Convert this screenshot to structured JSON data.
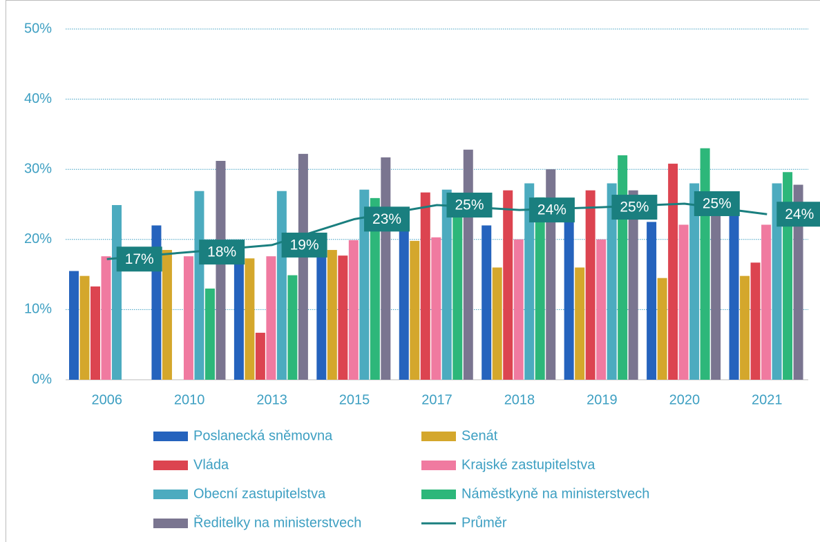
{
  "chart_data": {
    "type": "bar",
    "categories": [
      "2006",
      "2010",
      "2013",
      "2015",
      "2017",
      "2018",
      "2019",
      "2020",
      "2021"
    ],
    "series": [
      {
        "name": "Poslanecká sněmovna",
        "color": "#2563bd",
        "values": [
          15.5,
          22,
          19.5,
          19.5,
          22,
          22,
          23,
          22.5,
          25
        ]
      },
      {
        "name": "Senát",
        "color": "#d4a72c",
        "values": [
          14.8,
          18.5,
          17.3,
          18.5,
          19.8,
          16,
          16,
          14.5,
          14.8
        ]
      },
      {
        "name": "Vláda",
        "color": "#dc4450",
        "values": [
          13.3,
          null,
          6.7,
          17.7,
          26.7,
          27,
          27,
          30.8,
          16.7
        ]
      },
      {
        "name": "Krajské zastupitelstva",
        "color": "#f07aa0",
        "values": [
          17.6,
          17.6,
          17.6,
          19.9,
          20.3,
          20,
          20,
          22.1,
          22.1
        ]
      },
      {
        "name": "Obecní zastupitelstva",
        "color": "#4cabbf",
        "values": [
          24.9,
          26.9,
          26.9,
          27.1,
          27.1,
          28,
          28,
          28,
          28
        ]
      },
      {
        "name": "Náměstkyně na ministerstvech",
        "color": "#2db77a",
        "values": [
          null,
          13,
          14.9,
          25.9,
          25,
          26,
          32,
          33,
          29.6
        ]
      },
      {
        "name": "Ředitelky na ministerstvech",
        "color": "#7a7590",
        "values": [
          null,
          31.2,
          32.2,
          31.7,
          32.8,
          30,
          27,
          25,
          27.8
        ]
      },
      {
        "name": "Průměr",
        "type": "line",
        "color": "#1a7f7f",
        "values": [
          17.2,
          18.2,
          19.2,
          22.9,
          24.9,
          24.2,
          24.6,
          25.1,
          23.6
        ],
        "value_labels": [
          "17%",
          "18%",
          "19%",
          "23%",
          "25%",
          "24%",
          "25%",
          "25%",
          "24%"
        ]
      }
    ],
    "ylim": [
      0,
      50
    ],
    "yticks": [
      {
        "value": 0,
        "label": "0%"
      },
      {
        "value": 10,
        "label": "10%"
      },
      {
        "value": 20,
        "label": "20%"
      },
      {
        "value": 30,
        "label": "30%"
      },
      {
        "value": 40,
        "label": "40%"
      },
      {
        "value": 50,
        "label": "50%"
      }
    ],
    "grid": true
  }
}
